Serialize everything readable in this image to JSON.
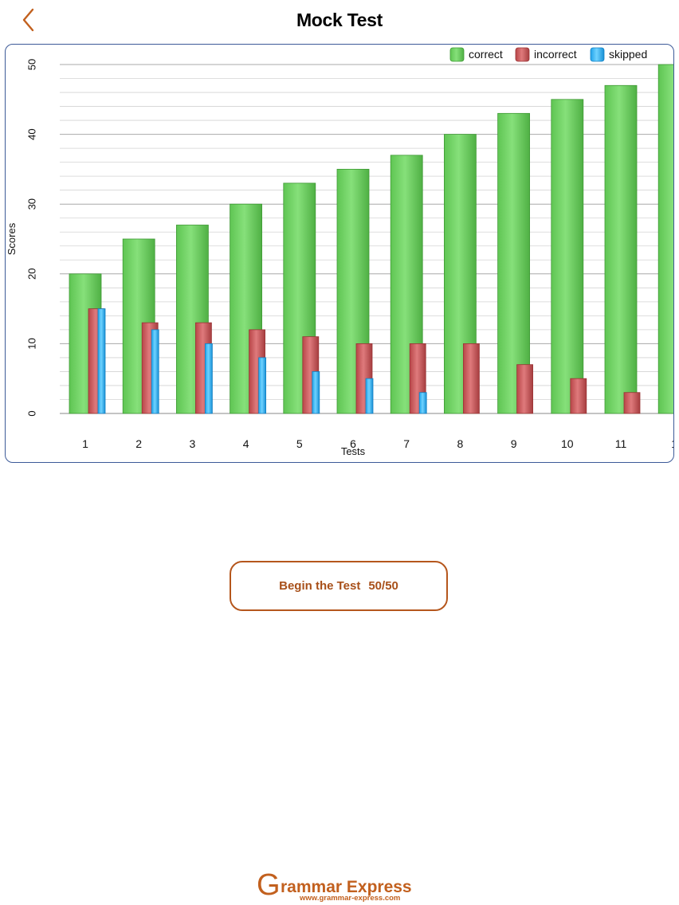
{
  "header": {
    "title": "Mock Test",
    "back_icon": "chevron-left-icon"
  },
  "colors": {
    "accent": "#b5561c",
    "card_border": "#3c5a98",
    "correct": "#6cd060",
    "incorrect": "#c9585a",
    "skipped": "#38b6f5"
  },
  "chart_data": {
    "type": "bar",
    "xlabel": "Tests",
    "ylabel": "Scores",
    "ylim": [
      0,
      50
    ],
    "yticks": [
      0,
      10,
      20,
      30,
      40,
      50
    ],
    "grid": true,
    "legend_position": "top-right",
    "categories": [
      "1",
      "2",
      "3",
      "4",
      "5",
      "6",
      "7",
      "8",
      "9",
      "10",
      "11",
      "1"
    ],
    "series": [
      {
        "name": "correct",
        "values": [
          20,
          25,
          27,
          30,
          33,
          35,
          37,
          40,
          43,
          45,
          47,
          50
        ]
      },
      {
        "name": "incorrect",
        "values": [
          15,
          13,
          13,
          12,
          11,
          10,
          10,
          10,
          7,
          5,
          3,
          0
        ]
      },
      {
        "name": "skipped",
        "values": [
          15,
          12,
          10,
          8,
          6,
          5,
          3,
          0,
          0,
          0,
          0,
          0
        ]
      }
    ]
  },
  "actions": {
    "begin_label": "Begin the Test",
    "progress": "50/50"
  },
  "footer": {
    "logo_g": "G",
    "logo_text": "rammar Express",
    "logo_url": "www.grammar-express.com"
  }
}
